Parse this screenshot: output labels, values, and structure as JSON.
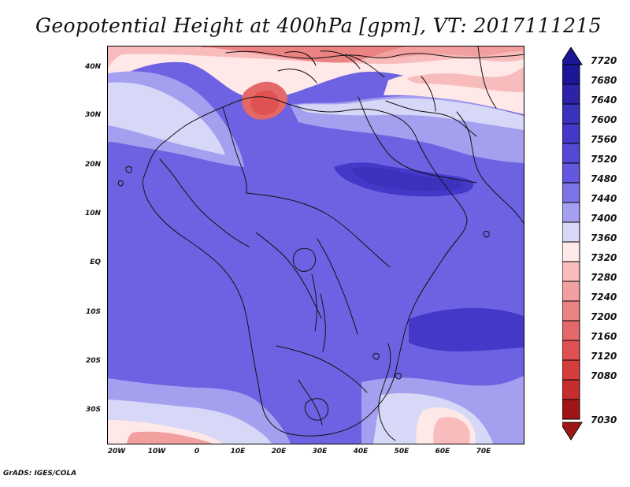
{
  "title": "Geopotential Height at 400hPa [gpm], VT: 2017111215",
  "credit": "GrADS: IGES/COLA",
  "axes": {
    "y_ticks": [
      "40N",
      "30N",
      "20N",
      "10N",
      "EQ",
      "10S",
      "20S",
      "30S"
    ],
    "x_ticks": [
      "20W",
      "10W",
      "0",
      "10E",
      "20E",
      "30E",
      "40E",
      "50E",
      "60E",
      "70E"
    ]
  },
  "legend": {
    "labels": [
      "7720",
      "7680",
      "7640",
      "7600",
      "7560",
      "7520",
      "7480",
      "7440",
      "7400",
      "7360",
      "7320",
      "7280",
      "7240",
      "7200",
      "7160",
      "7120",
      "7080",
      "7030"
    ],
    "colors": [
      "#1d1697",
      "#2d22a8",
      "#3a31bd",
      "#4438c9",
      "#5449d4",
      "#6458df",
      "#7c73e8",
      "#a59fef",
      "#d7d7f8",
      "#ffe8e8",
      "#f9bcbc",
      "#f29f9f",
      "#ec8383",
      "#e56868",
      "#e05252",
      "#d83d3d",
      "#c82d2d",
      "#a01616"
    ],
    "arrow_top_color": "#1d1697",
    "arrow_bottom_color": "#a01616"
  },
  "map": {
    "name": "africa-map",
    "palette": {
      "base": "#6d62e2",
      "mid": "#7c73e8",
      "light": "#a59fef",
      "very_light": "#d7d7f8",
      "blush": "#ffe8e8",
      "pink": "#f9bcbc",
      "salmon": "#f29f9f",
      "rose": "#ec8383",
      "red": "#e05252",
      "deep_red": "#d83d3d",
      "dark_red": "#a01616",
      "dark_blue": "#4438c9",
      "darker_blue": "#3a31bd",
      "ocean_outline": "#111111"
    }
  }
}
